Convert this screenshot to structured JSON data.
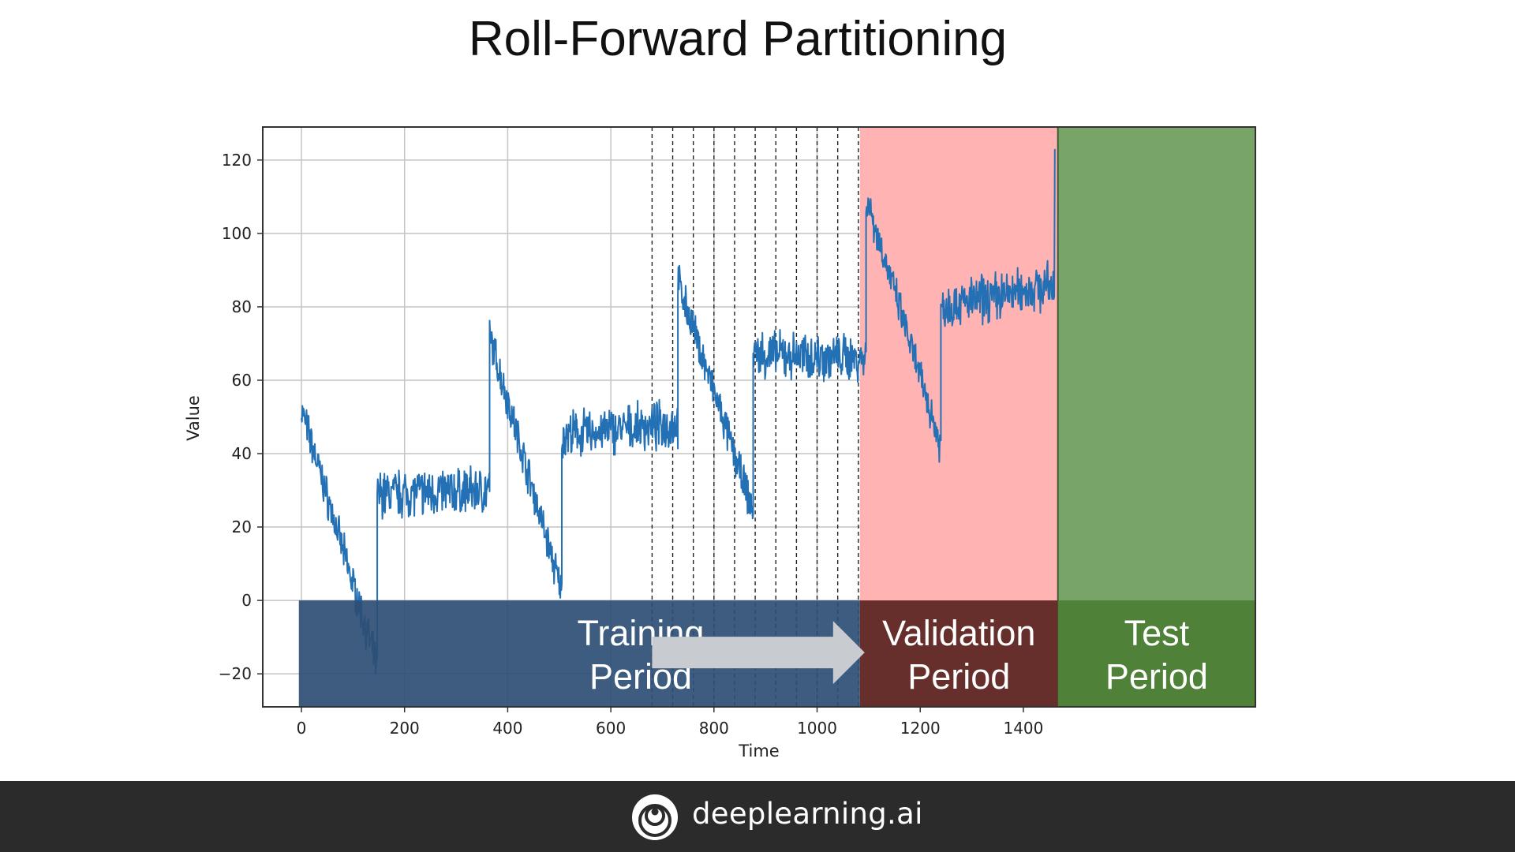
{
  "slide": {
    "title": "Roll-Forward Partitioning"
  },
  "footer": {
    "brand": "deeplearning.ai",
    "logo_icon": "deeplearning-ai-logo-icon"
  },
  "chart_data": {
    "type": "line",
    "xlabel": "Time",
    "ylabel": "Value",
    "xlim": [
      -75,
      1850
    ],
    "ylim": [
      -29,
      129
    ],
    "xticks": [
      0,
      200,
      400,
      600,
      800,
      1000,
      1200,
      1400
    ],
    "yticks": [
      -20,
      0,
      20,
      40,
      60,
      80,
      100,
      120
    ],
    "grid": true,
    "series": [
      {
        "color": "#2370b5",
        "segments": [
          {
            "start": 0,
            "end": 147,
            "y_start": 52,
            "y_end": -18,
            "noise": 4
          },
          {
            "start": 147,
            "end": 365,
            "y_start": 29,
            "y_end": 30,
            "noise": 5
          },
          {
            "start": 365,
            "end": 505,
            "y_start": 72,
            "y_end": 2,
            "noise": 4
          },
          {
            "start": 505,
            "end": 730,
            "y_start": 45,
            "y_end": 48,
            "noise": 5
          },
          {
            "start": 730,
            "end": 876,
            "y_start": 87,
            "y_end": 24,
            "noise": 4
          },
          {
            "start": 876,
            "end": 1095,
            "y_start": 67,
            "y_end": 66,
            "noise": 5
          },
          {
            "start": 1095,
            "end": 1240,
            "y_start": 110,
            "y_end": 42,
            "noise": 4
          },
          {
            "start": 1240,
            "end": 1460,
            "y_start": 80,
            "y_end": 86,
            "noise": 5
          }
        ],
        "final_spike": 123
      }
    ],
    "dashed_lines_x": [
      680,
      720,
      760,
      800,
      840,
      880,
      920,
      960,
      1000,
      1040,
      1080
    ],
    "regions": [
      {
        "name": "validation",
        "x_start": 1083,
        "x_end": 1467,
        "color": "#ffb3b3"
      },
      {
        "name": "test",
        "x_start": 1467,
        "x_end": 1850,
        "color": "#78a468"
      }
    ],
    "period_bands": [
      {
        "name": "training",
        "x_start": -5,
        "x_end": 1083,
        "color": "#2c4e74",
        "opacity": 0.92,
        "label_line1": "Training",
        "label_line2": "Period"
      },
      {
        "name": "validation",
        "x_start": 1083,
        "x_end": 1467,
        "color": "#5e2825",
        "opacity": 0.95,
        "label_line1": "Validation",
        "label_line2": "Period"
      },
      {
        "name": "test",
        "x_start": 1467,
        "x_end": 1850,
        "color": "#4d7f36",
        "opacity": 0.95,
        "label_line1": "Test",
        "label_line2": "Period"
      }
    ],
    "band_y_range": [
      -29,
      0
    ],
    "arrow": {
      "x_start": 680,
      "x_end": 1080,
      "color": "#c8ccd1"
    }
  }
}
